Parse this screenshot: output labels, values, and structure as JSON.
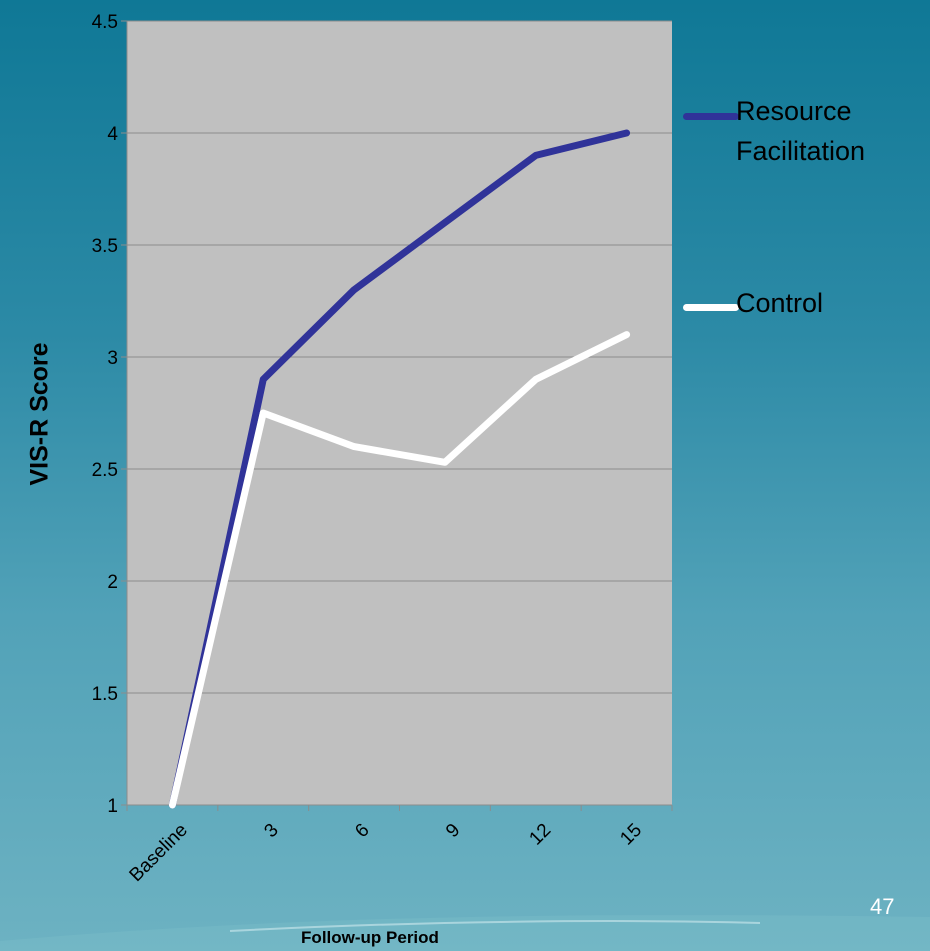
{
  "slide_number": "47",
  "colors": {
    "plot_background": "#c0c0c0",
    "gridline": "#8c8c8c",
    "series_resource": "#303399",
    "series_control": "#ffffff"
  },
  "chart_data": {
    "type": "line",
    "title": "",
    "xlabel": "Follow-up Period",
    "ylabel": "VIS-R Score",
    "categories": [
      "Baseline",
      "3",
      "6",
      "9",
      "12",
      "15"
    ],
    "ylim": [
      1,
      4.5
    ],
    "yticks": [
      "1",
      "1.5",
      "2",
      "2.5",
      "3",
      "3.5",
      "4",
      "4.5"
    ],
    "grid": true,
    "legend_position": "right",
    "series": [
      {
        "name": "Resource Facilitation",
        "color": "#303399",
        "values": [
          1,
          2.9,
          3.3,
          3.6,
          3.9,
          4.0
        ]
      },
      {
        "name": "Control",
        "color": "#ffffff",
        "values": [
          1,
          2.75,
          2.6,
          2.53,
          2.9,
          3.1
        ]
      }
    ]
  },
  "legend": {
    "resource_line1": "Resource",
    "resource_line2": "Facilitation",
    "control": "Control"
  }
}
